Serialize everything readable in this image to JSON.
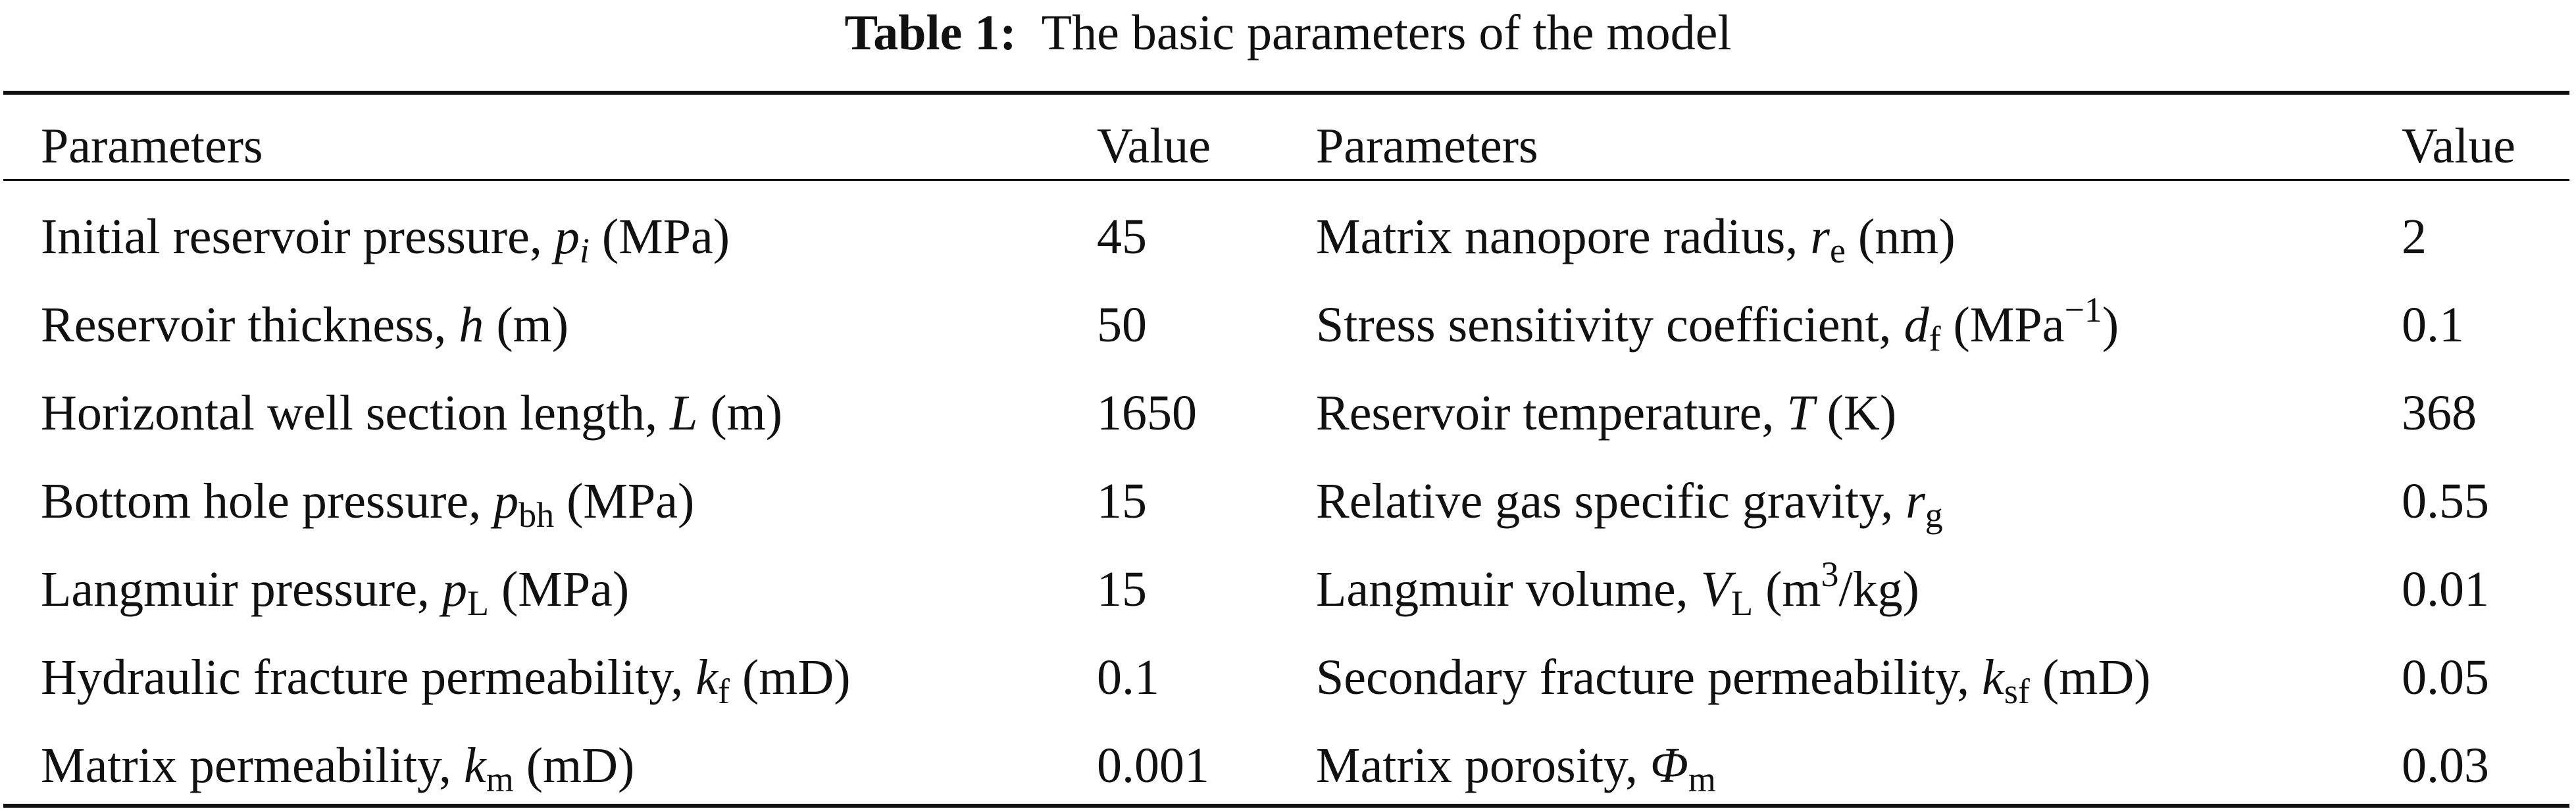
{
  "caption": {
    "label": "Table 1:",
    "text": "The basic parameters of the model"
  },
  "headers": {
    "parameters_left": "Parameters",
    "value_left": "Value",
    "parameters_right": "Parameters",
    "value_right": "Value"
  },
  "rows": [
    {
      "left": {
        "name": "Initial reservoir pressure, ",
        "symbol": "p",
        "sub": "i",
        "unit": "(MPa)",
        "value": "45"
      },
      "right": {
        "name": "Matrix nanopore radius, ",
        "symbol": "r",
        "sub": "e",
        "unit": "(nm)",
        "value": "2"
      }
    },
    {
      "left": {
        "name": "Reservoir thickness, ",
        "symbol": "h",
        "sub": "",
        "unit": "(m)",
        "value": "50"
      },
      "right": {
        "name": "Stress sensitivity coefficient, ",
        "symbol": "d",
        "sub": "f",
        "unit": "(MPa",
        "unit_sup": "−1",
        "unit_end": ")",
        "value": "0.1"
      }
    },
    {
      "left": {
        "name": "Horizontal well section length, ",
        "symbol": "L",
        "sub": "",
        "unit": "(m)",
        "value": "1650"
      },
      "right": {
        "name": "Reservoir temperature, ",
        "symbol": "T",
        "sub": "",
        "unit": "(K)",
        "value": "368"
      }
    },
    {
      "left": {
        "name": "Bottom hole pressure, ",
        "symbol": "p",
        "sub": "bh",
        "unit": "(MPa)",
        "value": "15"
      },
      "right": {
        "name": "Relative gas specific gravity, ",
        "symbol": "r",
        "sub": "g",
        "unit": "",
        "value": "0.55"
      }
    },
    {
      "left": {
        "name": "Langmuir pressure, ",
        "symbol": "p",
        "sub": "L",
        "unit": "(MPa)",
        "value": "15"
      },
      "right": {
        "name": "Langmuir volume, ",
        "symbol": "V",
        "sub": "L",
        "unit": "(m",
        "unit_sup": "3",
        "unit_end": "/kg)",
        "value": "0.01"
      }
    },
    {
      "left": {
        "name": "Hydraulic fracture permeability, ",
        "symbol": "k",
        "sub": "f",
        "unit": "(mD)",
        "value": "0.1"
      },
      "right": {
        "name": "Secondary fracture permeability, ",
        "symbol": "k",
        "sub": "sf",
        "unit": "(mD)",
        "value": "0.05"
      }
    },
    {
      "left": {
        "name": "Matrix permeability, ",
        "symbol": "k",
        "sub": "m",
        "unit": "(mD)",
        "value": "0.001"
      },
      "right": {
        "name": "Matrix porosity, ",
        "symbol": "Φ",
        "sub": "m",
        "unit": "",
        "value": "0.03"
      }
    }
  ]
}
